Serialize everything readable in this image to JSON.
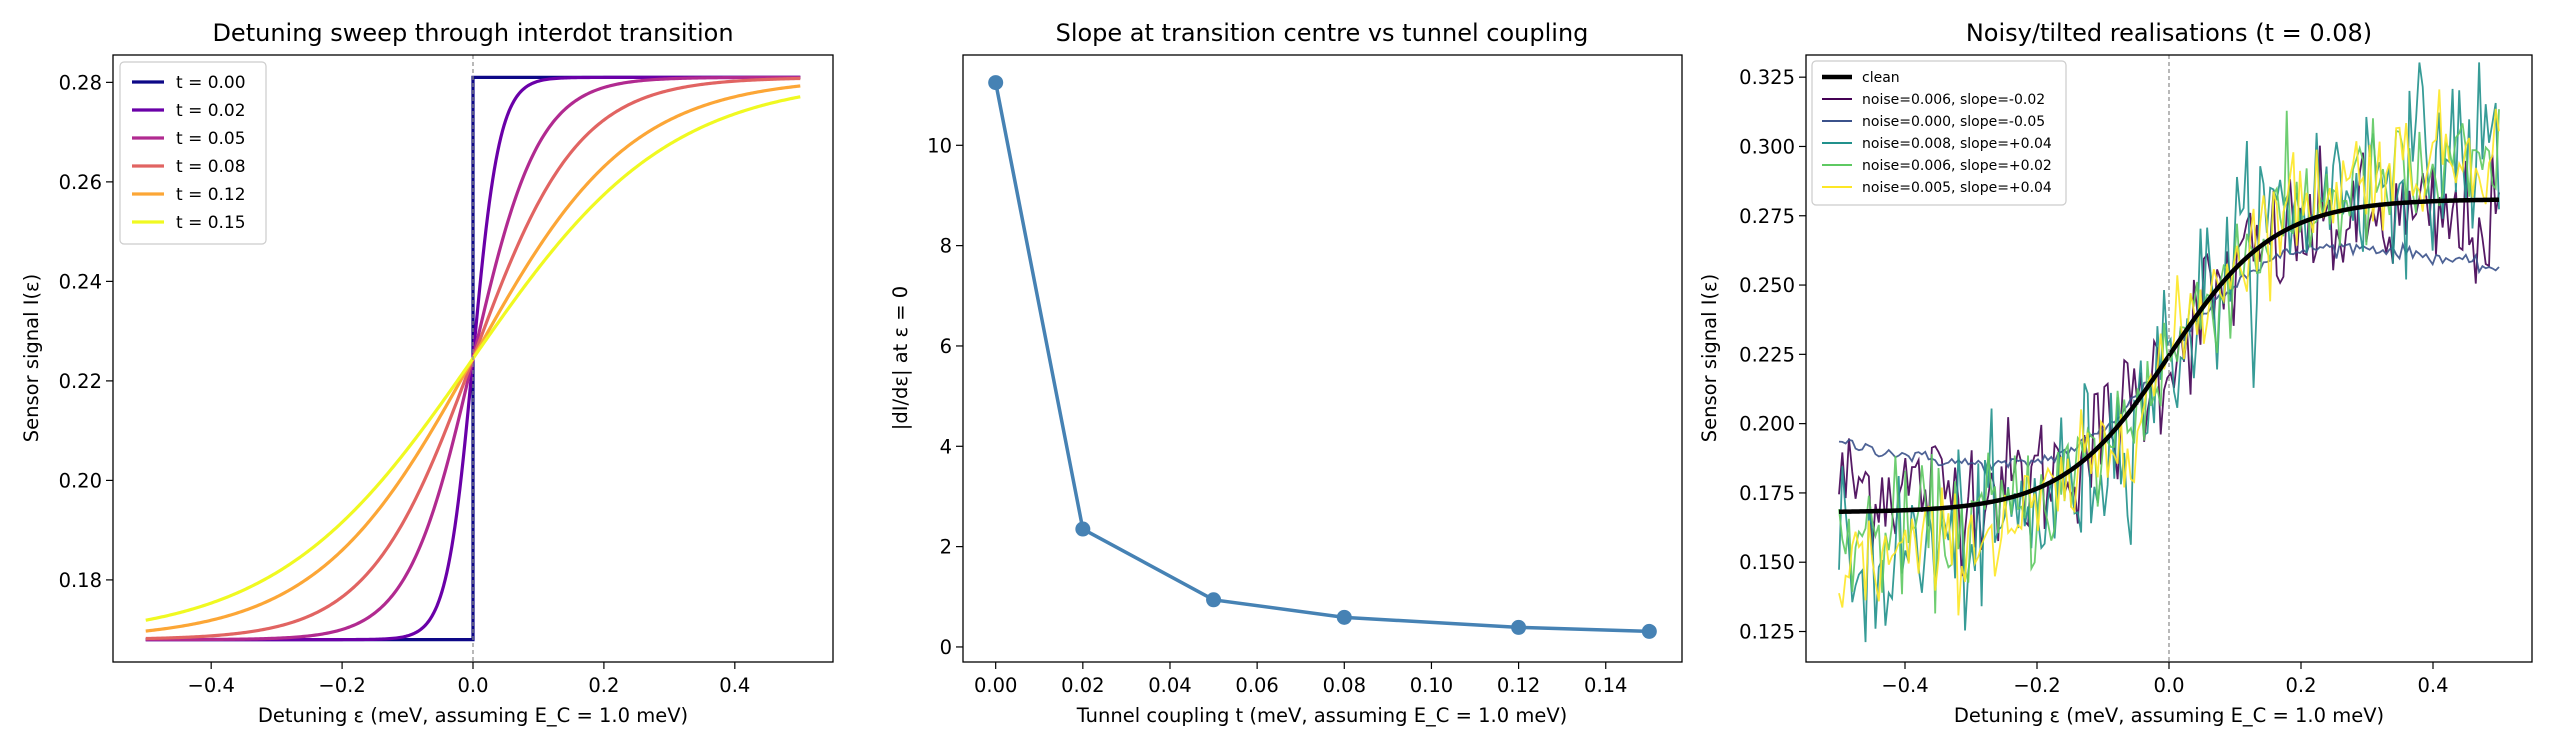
{
  "chart_data": [
    {
      "type": "line",
      "title": "Detuning sweep through interdot transition",
      "xlabel": "Detuning  ε  (meV, assuming E_C = 1.0 meV)",
      "ylabel": "Sensor signal  I(ε)",
      "xlim": [
        -0.55,
        0.55
      ],
      "ylim": [
        0.1635,
        0.2855
      ],
      "xticks": [
        -0.4,
        -0.2,
        0.0,
        0.2,
        0.4
      ],
      "xtick_labels": [
        "−0.4",
        "−0.2",
        "0.0",
        "0.2",
        "0.4"
      ],
      "yticks": [
        0.18,
        0.2,
        0.22,
        0.24,
        0.26,
        0.28
      ],
      "ytick_labels": [
        "0.18",
        "0.20",
        "0.22",
        "0.24",
        "0.26",
        "0.28"
      ],
      "grid": false,
      "legend_position": "top-left",
      "vline_x": 0.0,
      "curve_model": {
        "low": 0.168,
        "high": 0.281,
        "x_range": [
          -0.5,
          0.5
        ]
      },
      "series": [
        {
          "name": "t = 0.00",
          "t": 0.0,
          "color": "#0d0887"
        },
        {
          "name": "t = 0.02",
          "t": 0.02,
          "color": "#6a00a8"
        },
        {
          "name": "t = 0.05",
          "t": 0.05,
          "color": "#b12a90"
        },
        {
          "name": "t = 0.08",
          "t": 0.08,
          "color": "#e16462"
        },
        {
          "name": "t = 0.12",
          "t": 0.12,
          "color": "#fca636"
        },
        {
          "name": "t = 0.15",
          "t": 0.15,
          "color": "#f0f921"
        }
      ]
    },
    {
      "type": "line",
      "title": "Slope at transition centre vs tunnel coupling",
      "xlabel": "Tunnel coupling  t  (meV, assuming E_C = 1.0 meV)",
      "ylabel": "|dI/dε| at ε = 0",
      "xlim": [
        -0.0075,
        0.1575
      ],
      "ylim": [
        -0.3,
        11.8
      ],
      "xticks": [
        0.0,
        0.02,
        0.04,
        0.06,
        0.08,
        0.1,
        0.12,
        0.14
      ],
      "xtick_labels": [
        "0.00",
        "0.02",
        "0.04",
        "0.06",
        "0.08",
        "0.10",
        "0.12",
        "0.14"
      ],
      "yticks": [
        0,
        2,
        4,
        6,
        8,
        10
      ],
      "ytick_labels": [
        "0",
        "2",
        "4",
        "6",
        "8",
        "10"
      ],
      "grid": false,
      "color": "#4682b4",
      "x": [
        0.0,
        0.02,
        0.05,
        0.08,
        0.12,
        0.15
      ],
      "y": [
        11.25,
        2.35,
        0.94,
        0.59,
        0.39,
        0.31
      ]
    },
    {
      "type": "line",
      "title": "Noisy/tilted realisations (t = 0.08)",
      "xlabel": "Detuning  ε  (meV, assuming E_C = 1.0 meV)",
      "ylabel": "Sensor signal  I(ε)",
      "xlim": [
        -0.55,
        0.55
      ],
      "ylim": [
        0.114,
        0.333
      ],
      "xticks": [
        -0.4,
        -0.2,
        0.0,
        0.2,
        0.4
      ],
      "xtick_labels": [
        "−0.4",
        "−0.2",
        "0.0",
        "0.2",
        "0.4"
      ],
      "yticks": [
        0.125,
        0.15,
        0.175,
        0.2,
        0.225,
        0.25,
        0.275,
        0.3,
        0.325
      ],
      "ytick_labels": [
        "0.125",
        "0.150",
        "0.175",
        "0.200",
        "0.225",
        "0.250",
        "0.275",
        "0.300",
        "0.325"
      ],
      "grid": false,
      "legend_position": "top-left",
      "vline_x": 0.0,
      "curve_model": {
        "low": 0.168,
        "high": 0.281,
        "t": 0.08,
        "x_range": [
          -0.5,
          0.5
        ],
        "points": 200
      },
      "series": [
        {
          "name": "clean",
          "color": "#000000",
          "noise": 0.0,
          "slope": 0.0,
          "clean": true
        },
        {
          "name": "noise=0.006, slope=-0.02",
          "color": "#440154",
          "noise": 0.006,
          "slope": -0.02
        },
        {
          "name": "noise=0.000, slope=-0.05",
          "color": "#3b528b",
          "noise": 0.0,
          "slope": -0.05
        },
        {
          "name": "noise=0.008, slope=+0.04",
          "color": "#21918c",
          "noise": 0.008,
          "slope": 0.04
        },
        {
          "name": "noise=0.006, slope=+0.02",
          "color": "#5ec962",
          "noise": 0.006,
          "slope": 0.02
        },
        {
          "name": "noise=0.005, slope=+0.04",
          "color": "#fde725",
          "noise": 0.005,
          "slope": 0.04
        }
      ]
    }
  ]
}
